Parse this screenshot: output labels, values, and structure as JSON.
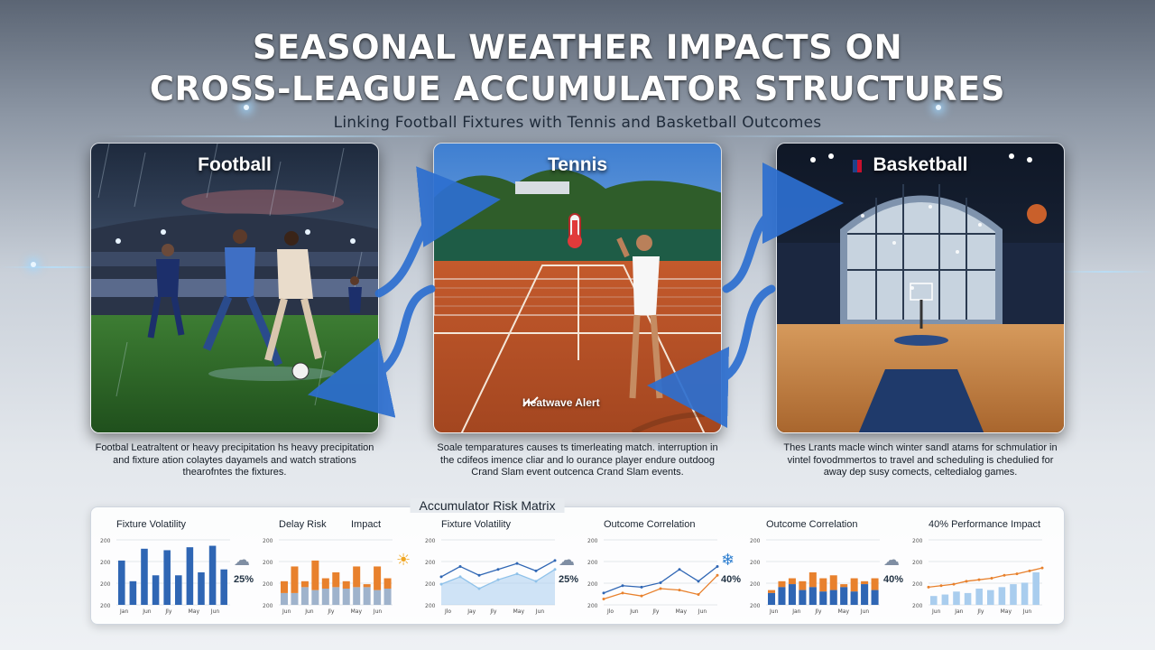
{
  "header": {
    "title_line1": "SEASONAL WEATHER IMPACTS ON",
    "title_line2": "CROSS-LEAGUE ACCUMULATOR STRUCTURES",
    "subtitle": "Linking Football Fixtures with Tennis and Basketball Outcomes"
  },
  "panels": [
    {
      "title": "Football",
      "caption": "Footbal Leatraltent or heavy precipitation hs heavy precipitation and fixture ation colaytes dayamels and watch strations thearofntes the fixtures."
    },
    {
      "title": "Tennis",
      "alert": "Heatwave Alert",
      "caption": "Soale temparatures causes ts timerleating match. interruption in the cdifeos imence cliar and lo ourance player endure outdoog Crand Slam event outcenca Crand Slam events."
    },
    {
      "title": "Basketball",
      "caption": "Thes Lrants macle winch winter sandl atams for schmulatior in vintel fovodmmertos to travel and scheduling is chedulied for away dep susy comects, celtedialog games."
    }
  ],
  "matrix": {
    "title": "Accumulator Risk Matrix",
    "charts": [
      {
        "label": "Fixture Volatility",
        "pct": "25%",
        "weather": "rain-cloud-icon",
        "axis_max": "200",
        "months": [
          "Jan",
          "Jun",
          "Jly",
          "May",
          "Jun"
        ],
        "blue": [
          150,
          80,
          190,
          100,
          185,
          100,
          195,
          110,
          200,
          120
        ]
      },
      {
        "label": "Delay Risk",
        "label2": "Impact",
        "weather": "sun-icon",
        "axis_max": "200",
        "months": [
          "Jun",
          "Jun",
          "Jly",
          "May",
          "Jun"
        ],
        "blue": [
          40,
          40,
          60,
          50,
          55,
          60,
          55,
          60,
          60,
          50,
          55
        ],
        "orange": [
          80,
          130,
          60,
          150,
          90,
          110,
          80,
          130,
          70,
          130,
          90
        ]
      },
      {
        "label": "Fixture Volatility",
        "pct": "25%",
        "weather": "rain-cloud-icon",
        "axis_max": "200",
        "months": [
          "Jlo",
          "Jay",
          "Jly",
          "May",
          "Jun"
        ],
        "line_dark": [
          95,
          130,
          100,
          120,
          140,
          115,
          150
        ],
        "line_light": [
          70,
          95,
          55,
          85,
          105,
          80,
          120
        ]
      },
      {
        "label": "Outcome Correlation",
        "weather": "snowflake-icon",
        "pct": "40%",
        "axis_max": "200",
        "months": [
          "Jlo",
          "Jun",
          "Jly",
          "May",
          "Jun"
        ],
        "line_dark": [
          40,
          65,
          60,
          75,
          120,
          80,
          130
        ],
        "line_orange": [
          20,
          40,
          30,
          55,
          50,
          35,
          100
        ]
      },
      {
        "label": "Outcome Correlation",
        "pct": "40%",
        "weather": "rain-cloud-icon",
        "axis_max": "200",
        "months": [
          "Jun",
          "Jan",
          "Jly",
          "May",
          "Jun"
        ],
        "blue": [
          40,
          60,
          70,
          50,
          60,
          45,
          50,
          60,
          45,
          70,
          50
        ],
        "orange": [
          50,
          80,
          90,
          80,
          110,
          90,
          100,
          70,
          90,
          80,
          90
        ]
      },
      {
        "label": "40% Performance Impact",
        "axis_max": "200",
        "months": [
          "Jun",
          "Jan",
          "Jly",
          "May",
          "Jun"
        ],
        "bars": [
          30,
          35,
          45,
          40,
          55,
          50,
          60,
          70,
          75,
          110
        ],
        "line_orange": [
          60,
          65,
          70,
          80,
          85,
          90,
          100,
          105,
          115,
          125
        ]
      }
    ]
  },
  "colors": {
    "blue": "#2f66b4",
    "orange": "#e8812d",
    "light_blue": "#a9cdee",
    "title_shadow": "#000000"
  }
}
